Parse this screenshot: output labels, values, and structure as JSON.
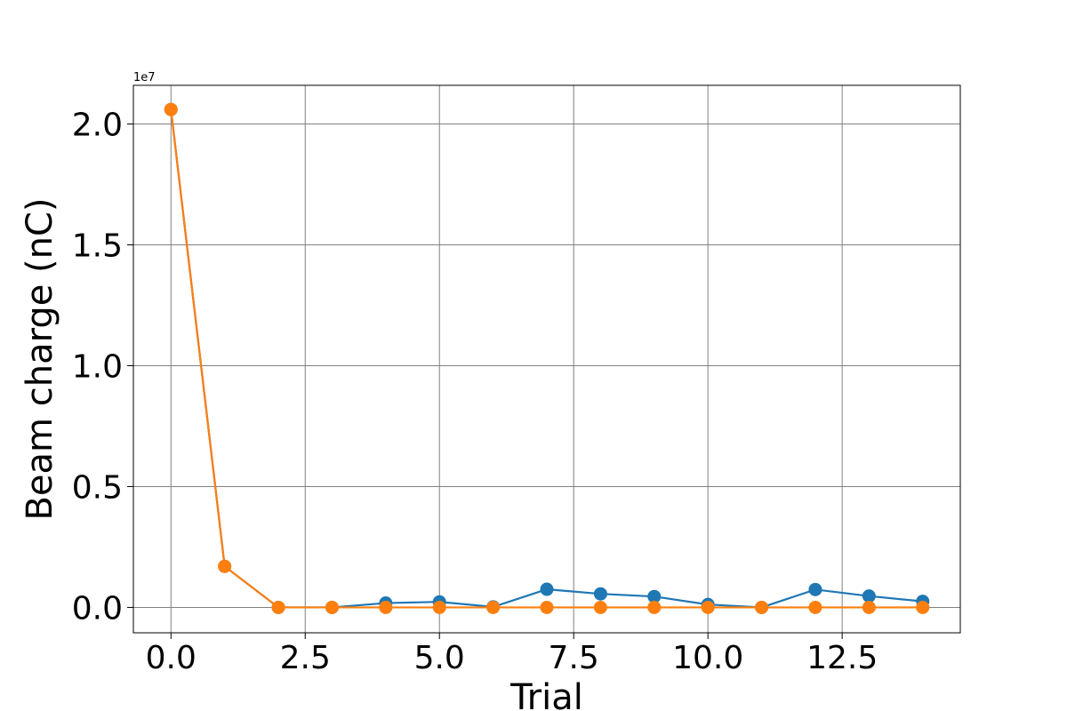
{
  "chart_data": {
    "type": "line",
    "title": "",
    "xlabel": "Trial",
    "ylabel": "Beam charge (nC)",
    "y_offset_label": "1e7",
    "xlim": [
      -0.7,
      14.7
    ],
    "ylim": [
      -1050000,
      21600000
    ],
    "x_ticks": [
      0.0,
      2.5,
      5.0,
      7.5,
      10.0,
      12.5
    ],
    "x_tick_labels": [
      "0.0",
      "2.5",
      "5.0",
      "7.5",
      "10.0",
      "12.5"
    ],
    "y_ticks": [
      0,
      5000000,
      10000000,
      15000000,
      20000000
    ],
    "y_tick_labels": [
      "0.0",
      "0.5",
      "1.0",
      "1.5",
      "2.0"
    ],
    "grid": true,
    "x": [
      0,
      1,
      2,
      3,
      4,
      5,
      6,
      7,
      8,
      9,
      10,
      11,
      12,
      13,
      14
    ],
    "series": [
      {
        "color": "#1f77b4",
        "values": [
          20600000,
          1700000,
          0,
          0,
          180000,
          230000,
          20000,
          750000,
          560000,
          450000,
          120000,
          0,
          740000,
          470000,
          250000
        ]
      },
      {
        "color": "#ff7f0e",
        "values": [
          20600000,
          1700000,
          0,
          0,
          0,
          0,
          0,
          0,
          0,
          0,
          0,
          0,
          0,
          0,
          0
        ]
      }
    ]
  }
}
